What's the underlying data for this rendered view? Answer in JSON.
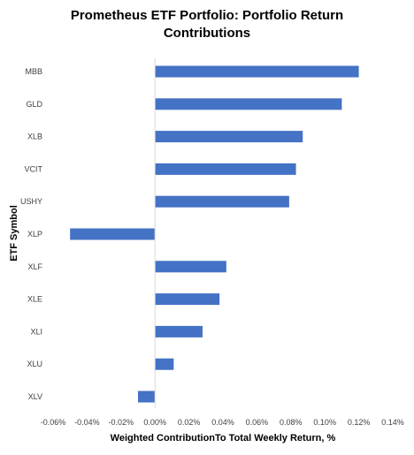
{
  "chart_data": {
    "type": "bar",
    "orientation": "horizontal",
    "title_lines": [
      "Prometheus ETF Portfolio: Portfolio Return",
      "Contributions"
    ],
    "xlabel": "Weighted ContributionTo Total Weekly Return, %",
    "ylabel": "ETF Symbol",
    "categories": [
      "MBB",
      "GLD",
      "XLB",
      "VCIT",
      "USHY",
      "XLP",
      "XLF",
      "XLE",
      "XLI",
      "XLU",
      "XLV"
    ],
    "values": [
      0.12,
      0.11,
      0.087,
      0.083,
      0.079,
      -0.05,
      0.042,
      0.038,
      0.028,
      0.011,
      -0.01
    ],
    "xlim": [
      -0.06,
      0.14
    ],
    "xticks": [
      -0.06,
      -0.04,
      -0.02,
      0,
      0.02,
      0.04,
      0.06,
      0.08,
      0.1,
      0.12,
      0.14
    ],
    "xtick_labels": [
      "-0.06%",
      "-0.04%",
      "-0.02%",
      "0.00%",
      "0.02%",
      "0.04%",
      "0.06%",
      "0.08%",
      "0.10%",
      "0.12%",
      "0.14%"
    ],
    "bar_color": "#4472C4",
    "grid": false,
    "legend": "none"
  }
}
